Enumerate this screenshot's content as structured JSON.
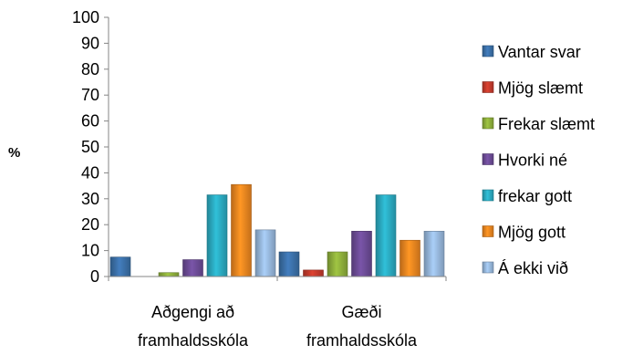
{
  "chart_data": {
    "type": "bar",
    "ylabel": "%",
    "ylim": [
      0,
      100
    ],
    "yticks": [
      0,
      10,
      20,
      30,
      40,
      50,
      60,
      70,
      80,
      90,
      100
    ],
    "grid": false,
    "legend_position": "right",
    "categories": [
      [
        "Aðgengi að",
        "framhaldsskóla"
      ],
      [
        "Gæði",
        "framhaldsskóla"
      ]
    ],
    "series": [
      {
        "name": "Vantar svar",
        "color": "#3a6ea5",
        "values": [
          7.5,
          9.5
        ]
      },
      {
        "name": "Mjög slæmt",
        "color": "#c0392b",
        "values": [
          0,
          2.5
        ]
      },
      {
        "name": "Frekar slæmt",
        "color": "#8bab3a",
        "values": [
          1.5,
          9.5
        ]
      },
      {
        "name": "Hvorki né",
        "color": "#6a4a93",
        "values": [
          6.5,
          17.5
        ]
      },
      {
        "name": "frekar gott",
        "color": "#2aa7bd",
        "values": [
          31.5,
          31.5
        ]
      },
      {
        "name": "Mjög gott",
        "color": "#e8831f",
        "values": [
          35.5,
          14
        ]
      },
      {
        "name": "Á ekki við",
        "color": "#94b4d8",
        "values": [
          18,
          17.5
        ]
      }
    ]
  }
}
